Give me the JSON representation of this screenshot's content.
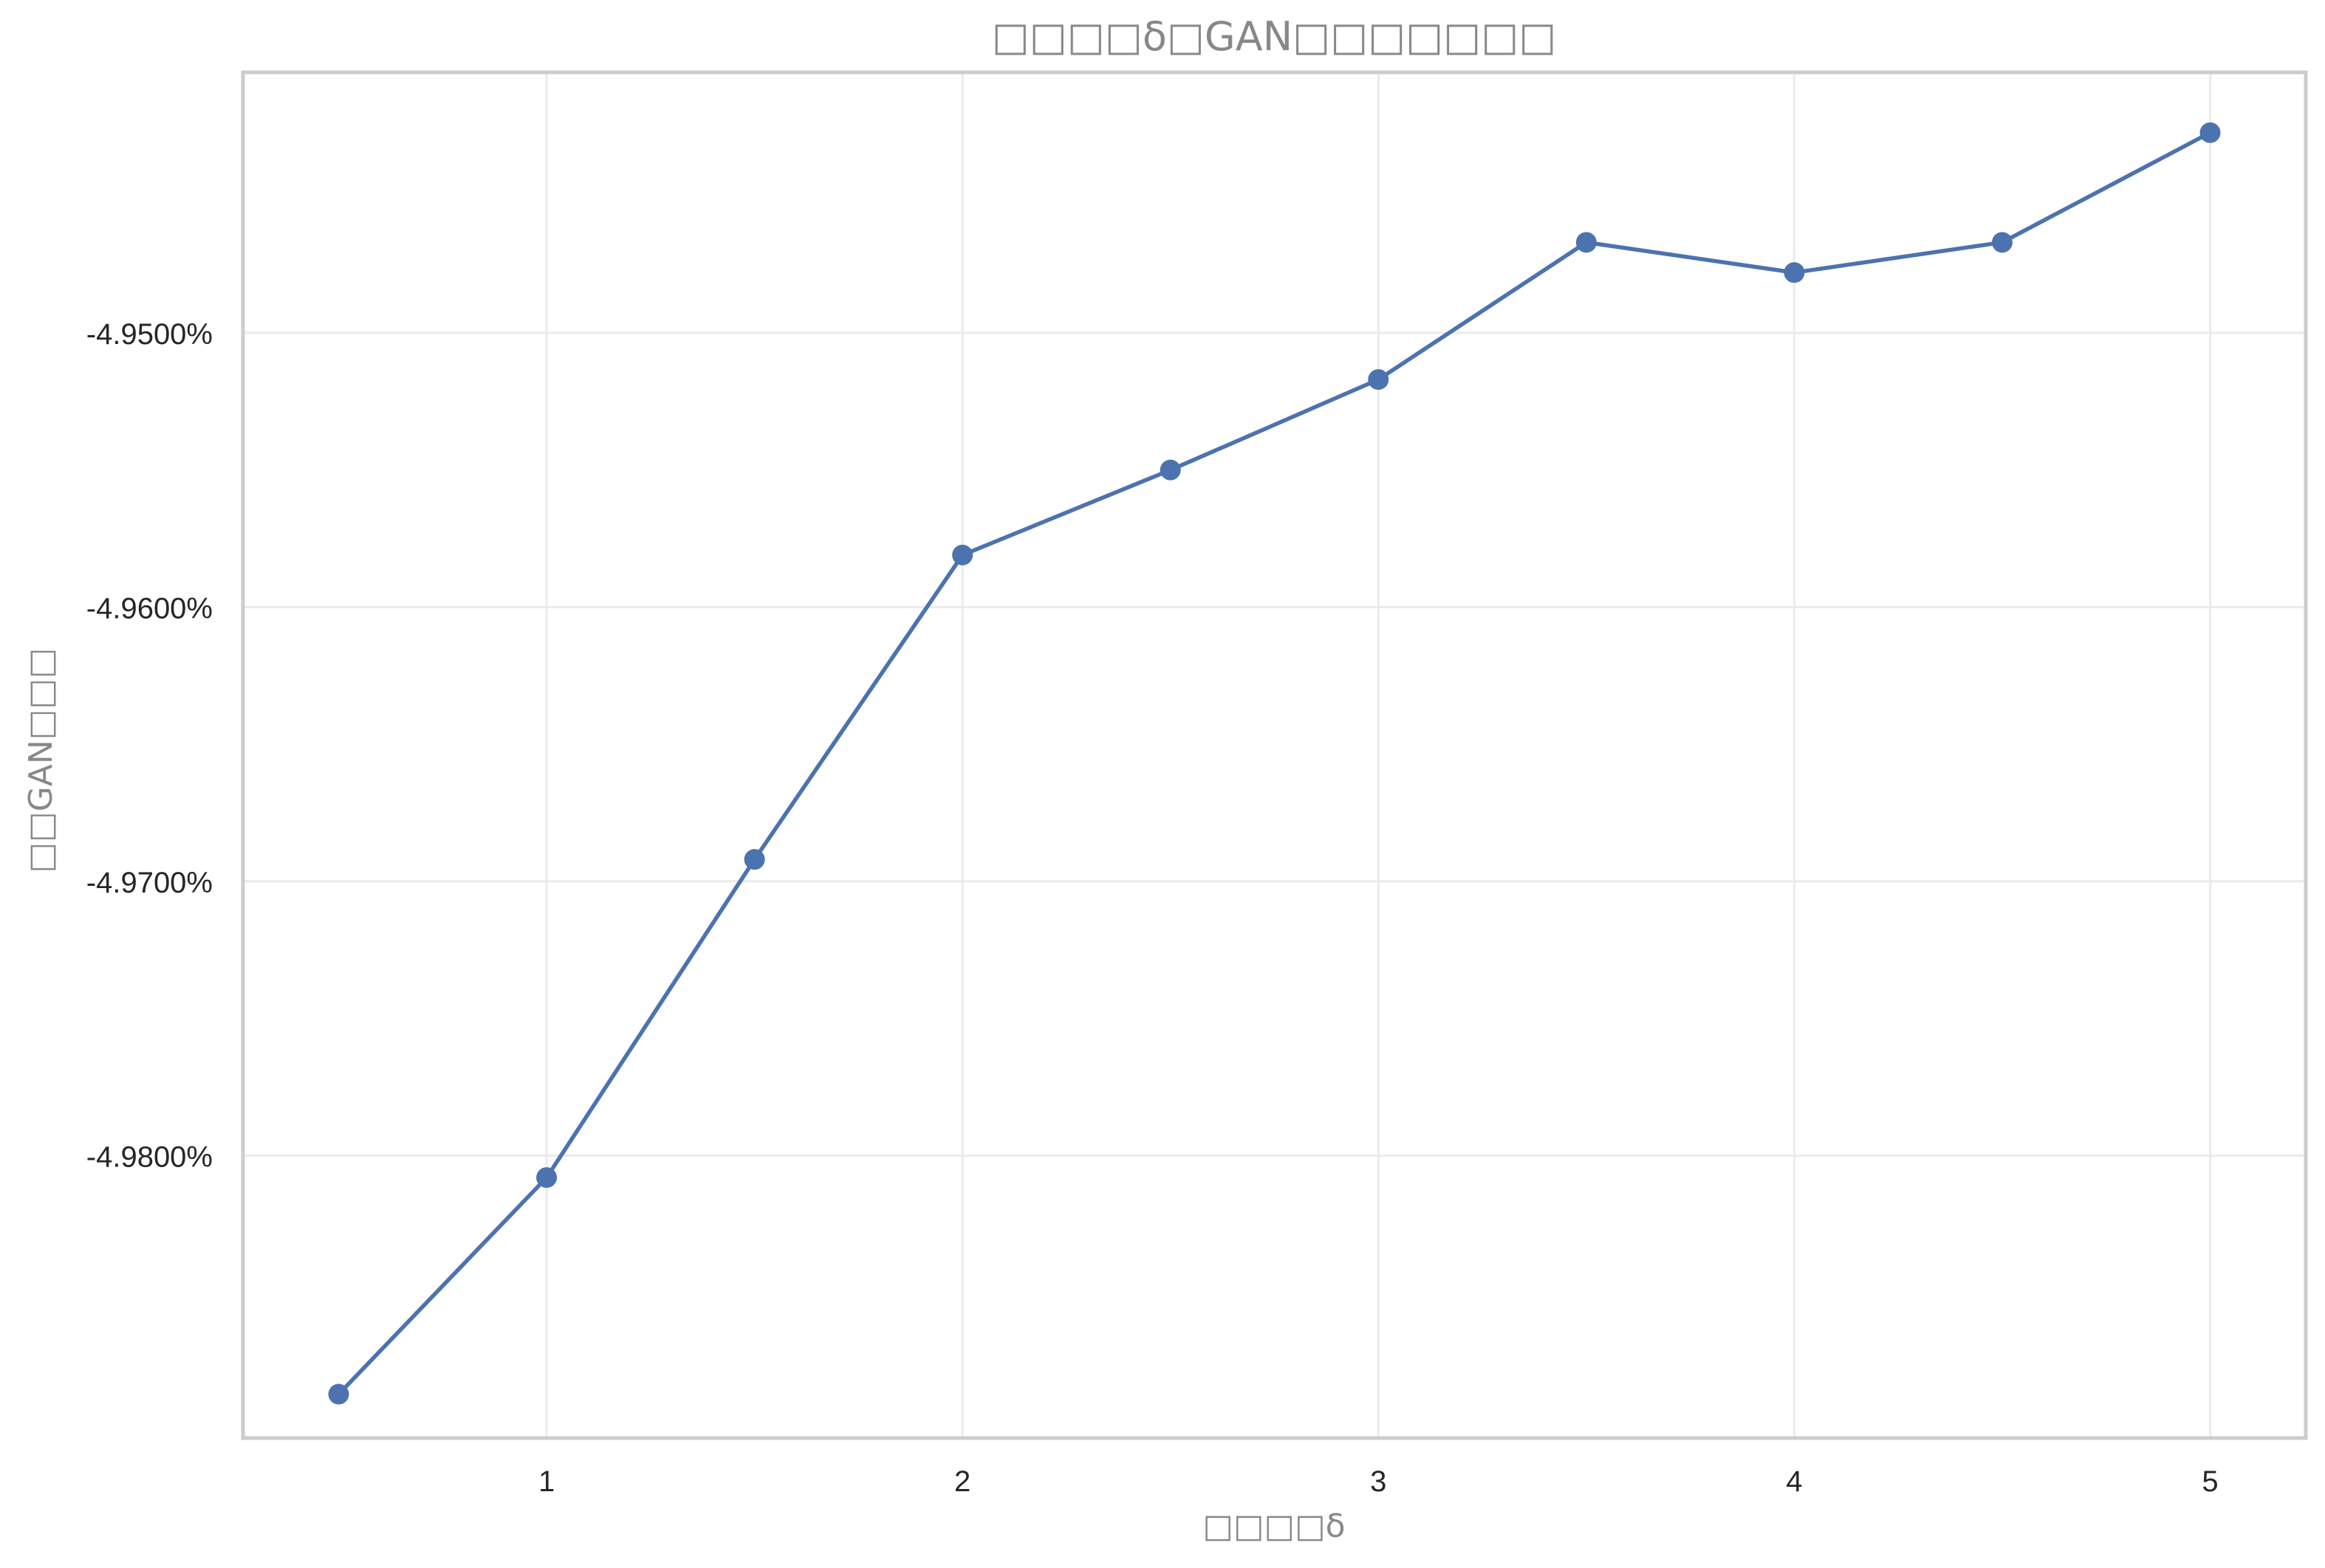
{
  "chart_data": {
    "type": "line",
    "title": "□□□□δ□GAN□□□□□□□",
    "xlabel": "□□□□δ",
    "ylabel": "□□GAN□□□",
    "x": [
      0.5,
      1.0,
      1.5,
      2.0,
      2.5,
      3.0,
      3.5,
      4.0,
      4.5,
      5.0
    ],
    "series": [
      {
        "values": [
          -4.9887,
          -4.9808,
          -4.9692,
          -4.9581,
          -4.955,
          -4.9517,
          -4.9467,
          -4.9478,
          -4.9467,
          -4.9427
        ]
      }
    ],
    "xlim": [
      0.27,
      5.23
    ],
    "ylim": [
      -4.9903,
      -4.9405
    ],
    "xticks": [
      1,
      2,
      3,
      4,
      5
    ],
    "xtick_labels": [
      "1",
      "2",
      "3",
      "4",
      "5"
    ],
    "yticks": [
      -4.95,
      -4.96,
      -4.97,
      -4.98
    ],
    "ytick_labels": [
      "-4.9500%",
      "-4.9600%",
      "-4.9700%",
      "-4.9800%"
    ],
    "grid": true,
    "colors": {
      "line": "#4c72b0",
      "grid": "#ebebeb",
      "spine": "#cccccc"
    }
  }
}
